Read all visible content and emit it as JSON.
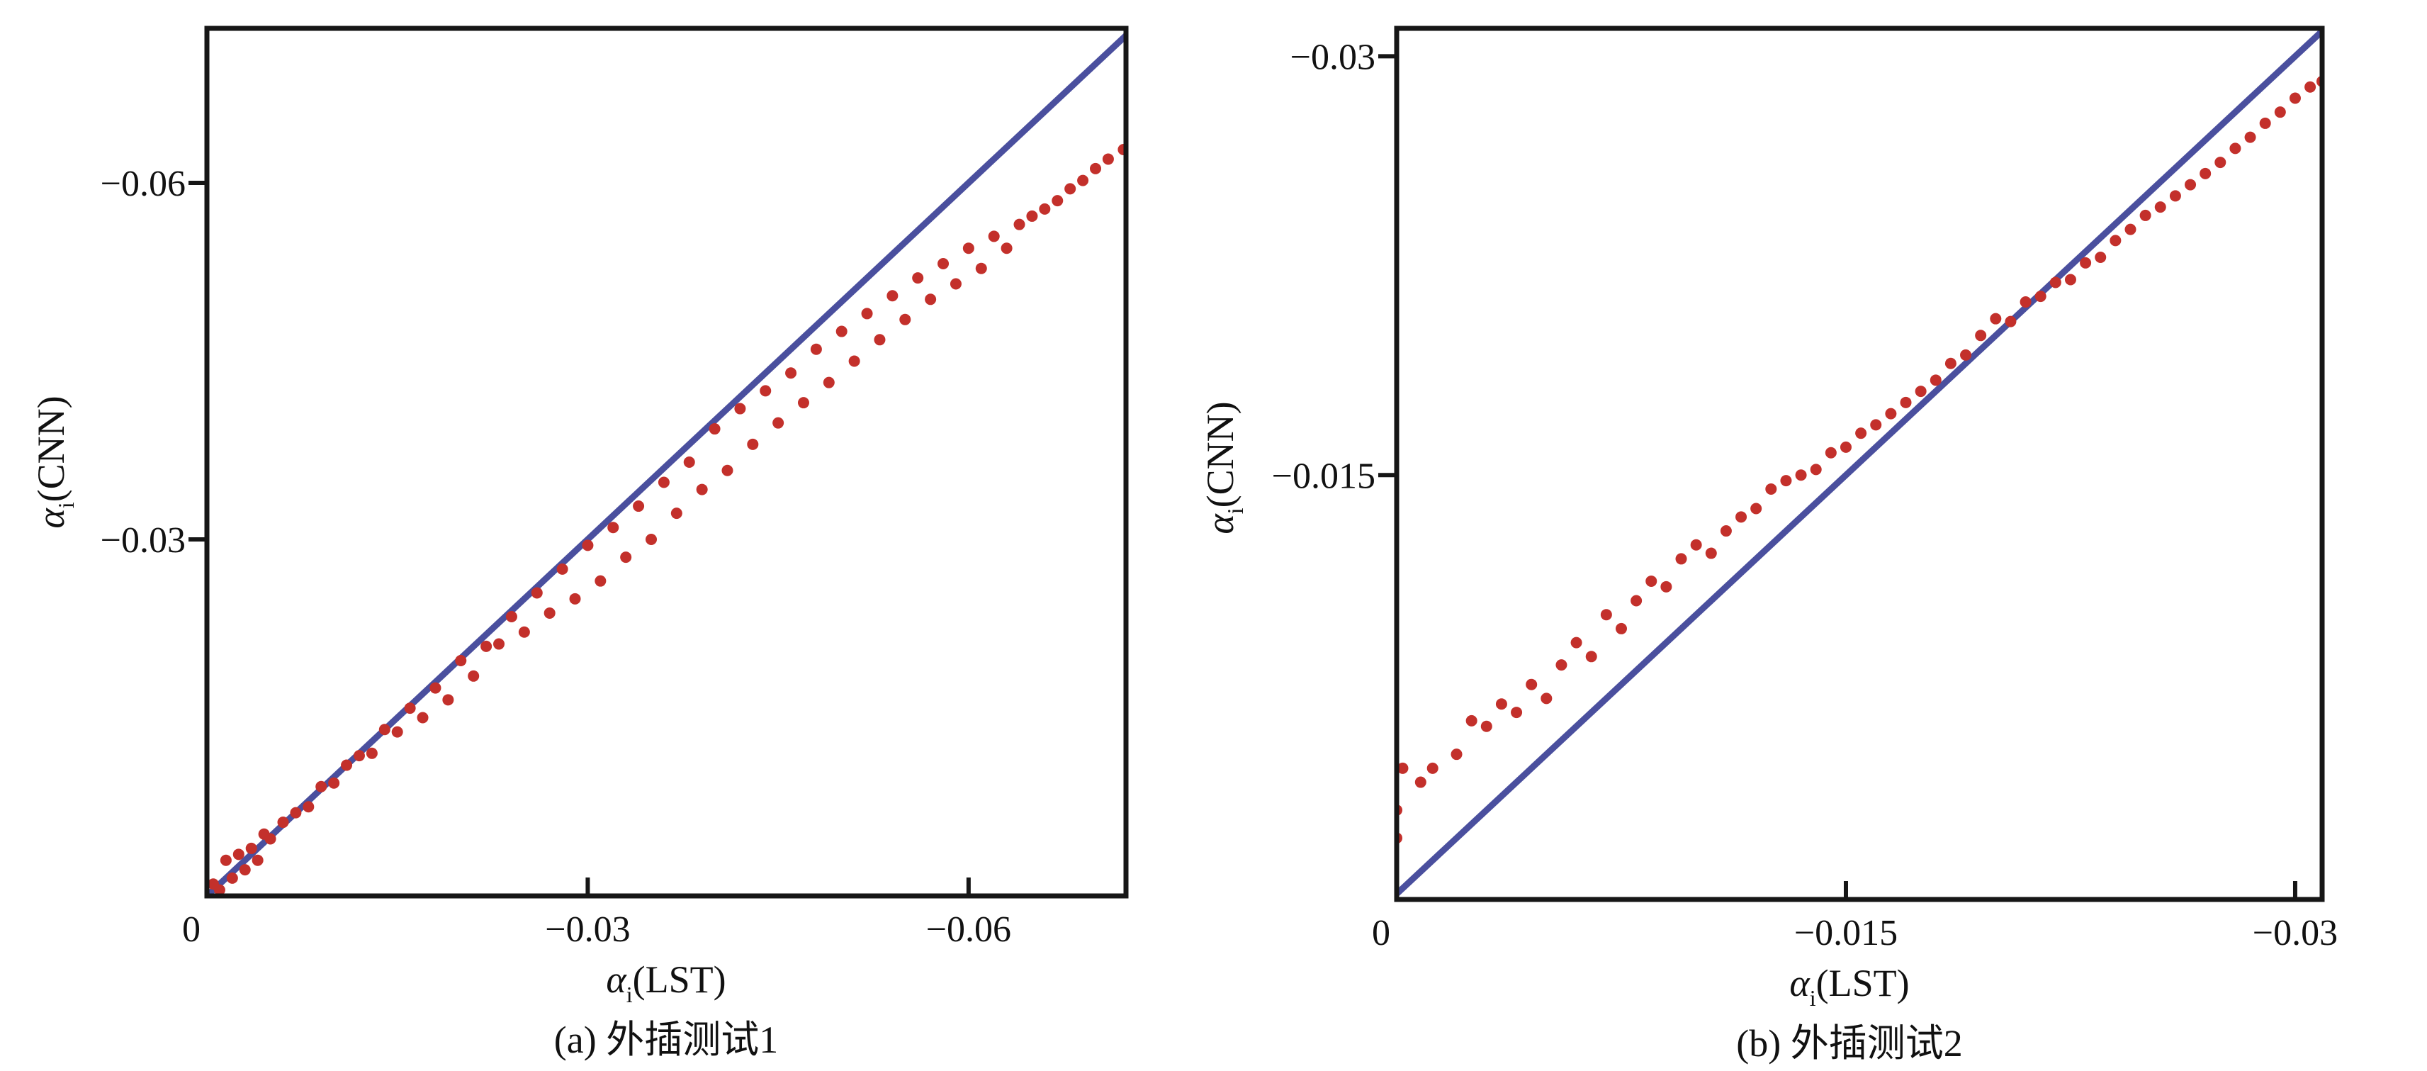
{
  "chart_data": [
    {
      "type": "scatter",
      "caption": "(a) 外插测试1",
      "xlabel": {
        "symbol": "α",
        "sub": "i",
        "text": "(LST)"
      },
      "ylabel": {
        "symbol": "α",
        "sub": "i",
        "text": "(CNN)"
      },
      "xlim": [
        0,
        -0.0724
      ],
      "ylim": [
        0,
        -0.073
      ],
      "xticks": [
        {
          "value": 0,
          "label": "0"
        },
        {
          "value": -0.03,
          "label": "−0.03"
        },
        {
          "value": -0.06,
          "label": "−0.06"
        }
      ],
      "yticks": [
        {
          "value": -0.03,
          "label": "−0.03"
        },
        {
          "value": -0.06,
          "label": "−0.06"
        }
      ],
      "reference_line": {
        "name": "y = x",
        "color": "#4a4f9e"
      },
      "point_color": "#c3302b",
      "points": [
        [
          -0.0005,
          -0.001
        ],
        [
          -0.001,
          -0.0005
        ],
        [
          -0.0015,
          -0.003
        ],
        [
          -0.002,
          -0.0015
        ],
        [
          -0.0025,
          -0.0035
        ],
        [
          -0.003,
          -0.0022
        ],
        [
          -0.0035,
          -0.004
        ],
        [
          -0.004,
          -0.003
        ],
        [
          -0.0045,
          -0.0052
        ],
        [
          -0.005,
          -0.0048
        ],
        [
          -0.006,
          -0.0062
        ],
        [
          -0.007,
          -0.007
        ],
        [
          -0.008,
          -0.0075
        ],
        [
          -0.009,
          -0.0092
        ],
        [
          -0.01,
          -0.0095
        ],
        [
          -0.011,
          -0.011
        ],
        [
          -0.012,
          -0.0118
        ],
        [
          -0.013,
          -0.012
        ],
        [
          -0.014,
          -0.014
        ],
        [
          -0.015,
          -0.0138
        ],
        [
          -0.016,
          -0.0158
        ],
        [
          -0.017,
          -0.015
        ],
        [
          -0.018,
          -0.0175
        ],
        [
          -0.019,
          -0.0165
        ],
        [
          -0.02,
          -0.0198
        ],
        [
          -0.021,
          -0.0185
        ],
        [
          -0.022,
          -0.021
        ],
        [
          -0.023,
          -0.0212
        ],
        [
          -0.024,
          -0.0235
        ],
        [
          -0.025,
          -0.0222
        ],
        [
          -0.026,
          -0.0255
        ],
        [
          -0.027,
          -0.0238
        ],
        [
          -0.028,
          -0.0275
        ],
        [
          -0.029,
          -0.025
        ],
        [
          -0.03,
          -0.0295
        ],
        [
          -0.031,
          -0.0265
        ],
        [
          -0.032,
          -0.031
        ],
        [
          -0.033,
          -0.0285
        ],
        [
          -0.034,
          -0.0328
        ],
        [
          -0.035,
          -0.03
        ],
        [
          -0.036,
          -0.0348
        ],
        [
          -0.037,
          -0.0322
        ],
        [
          -0.038,
          -0.0365
        ],
        [
          -0.039,
          -0.0342
        ],
        [
          -0.04,
          -0.0393
        ],
        [
          -0.041,
          -0.0358
        ],
        [
          -0.042,
          -0.041
        ],
        [
          -0.043,
          -0.038
        ],
        [
          -0.044,
          -0.0425
        ],
        [
          -0.045,
          -0.0398
        ],
        [
          -0.046,
          -0.044
        ],
        [
          -0.047,
          -0.0415
        ],
        [
          -0.048,
          -0.046
        ],
        [
          -0.049,
          -0.0432
        ],
        [
          -0.05,
          -0.0475
        ],
        [
          -0.051,
          -0.045
        ],
        [
          -0.052,
          -0.049
        ],
        [
          -0.053,
          -0.0468
        ],
        [
          -0.054,
          -0.0505
        ],
        [
          -0.055,
          -0.0485
        ],
        [
          -0.056,
          -0.052
        ],
        [
          -0.057,
          -0.0502
        ],
        [
          -0.058,
          -0.0532
        ],
        [
          -0.059,
          -0.0515
        ],
        [
          -0.06,
          -0.0545
        ],
        [
          -0.061,
          -0.0528
        ],
        [
          -0.062,
          -0.0555
        ],
        [
          -0.063,
          -0.0545
        ],
        [
          -0.064,
          -0.0565
        ],
        [
          -0.065,
          -0.0572
        ],
        [
          -0.066,
          -0.0578
        ],
        [
          -0.067,
          -0.0585
        ],
        [
          -0.068,
          -0.0595
        ],
        [
          -0.069,
          -0.0602
        ],
        [
          -0.07,
          -0.0612
        ],
        [
          -0.071,
          -0.062
        ],
        [
          -0.0722,
          -0.0628
        ]
      ]
    },
    {
      "type": "scatter",
      "caption": "(b) 外插测试2",
      "xlabel": {
        "symbol": "α",
        "sub": "i",
        "text": "(LST)"
      },
      "ylabel": {
        "symbol": "α",
        "sub": "i",
        "text": "(CNN)"
      },
      "xlim": [
        0,
        -0.0309
      ],
      "ylim": [
        0.0002,
        -0.031
      ],
      "xticks": [
        {
          "value": 0,
          "label": "0"
        },
        {
          "value": -0.015,
          "label": "−0.015"
        },
        {
          "value": -0.03,
          "label": "−0.03"
        }
      ],
      "yticks": [
        {
          "value": -0.015,
          "label": "−0.015"
        },
        {
          "value": -0.03,
          "label": "−0.03"
        }
      ],
      "reference_line": {
        "name": "y = x",
        "color": "#4a4f9e"
      },
      "point_color": "#c3302b",
      "points": [
        [
          0,
          -0.002
        ],
        [
          0,
          -0.003
        ],
        [
          -0.0002,
          -0.0045
        ],
        [
          -0.0008,
          -0.004
        ],
        [
          -0.0012,
          -0.0045
        ],
        [
          -0.002,
          -0.005
        ],
        [
          -0.0025,
          -0.0062
        ],
        [
          -0.003,
          -0.006
        ],
        [
          -0.0035,
          -0.0068
        ],
        [
          -0.004,
          -0.0065
        ],
        [
          -0.0045,
          -0.0075
        ],
        [
          -0.005,
          -0.007
        ],
        [
          -0.0055,
          -0.0082
        ],
        [
          -0.006,
          -0.009
        ],
        [
          -0.0065,
          -0.0085
        ],
        [
          -0.007,
          -0.01
        ],
        [
          -0.0075,
          -0.0095
        ],
        [
          -0.008,
          -0.0105
        ],
        [
          -0.0085,
          -0.0112
        ],
        [
          -0.009,
          -0.011
        ],
        [
          -0.0095,
          -0.012
        ],
        [
          -0.01,
          -0.0125
        ],
        [
          -0.0105,
          -0.0122
        ],
        [
          -0.011,
          -0.013
        ],
        [
          -0.0115,
          -0.0135
        ],
        [
          -0.012,
          -0.0138
        ],
        [
          -0.0125,
          -0.0145
        ],
        [
          -0.013,
          -0.0148
        ],
        [
          -0.0135,
          -0.015
        ],
        [
          -0.014,
          -0.0152
        ],
        [
          -0.0145,
          -0.0158
        ],
        [
          -0.015,
          -0.016
        ],
        [
          -0.0155,
          -0.0165
        ],
        [
          -0.016,
          -0.0168
        ],
        [
          -0.0165,
          -0.0172
        ],
        [
          -0.017,
          -0.0176
        ],
        [
          -0.0175,
          -0.018
        ],
        [
          -0.018,
          -0.0184
        ],
        [
          -0.0185,
          -0.019
        ],
        [
          -0.019,
          -0.0193
        ],
        [
          -0.0195,
          -0.02
        ],
        [
          -0.02,
          -0.0206
        ],
        [
          -0.0205,
          -0.0205
        ],
        [
          -0.021,
          -0.0212
        ],
        [
          -0.0215,
          -0.0214
        ],
        [
          -0.022,
          -0.0219
        ],
        [
          -0.0225,
          -0.022
        ],
        [
          -0.023,
          -0.0226
        ],
        [
          -0.0235,
          -0.0228
        ],
        [
          -0.024,
          -0.0234
        ],
        [
          -0.0245,
          -0.0238
        ],
        [
          -0.025,
          -0.0243
        ],
        [
          -0.0255,
          -0.0246
        ],
        [
          -0.026,
          -0.025
        ],
        [
          -0.0265,
          -0.0254
        ],
        [
          -0.027,
          -0.0258
        ],
        [
          -0.0275,
          -0.0262
        ],
        [
          -0.028,
          -0.0267
        ],
        [
          -0.0285,
          -0.0271
        ],
        [
          -0.029,
          -0.0276
        ],
        [
          -0.0295,
          -0.028
        ],
        [
          -0.03,
          -0.0285
        ],
        [
          -0.0305,
          -0.0289
        ],
        [
          -0.0309,
          -0.0291
        ]
      ]
    }
  ]
}
